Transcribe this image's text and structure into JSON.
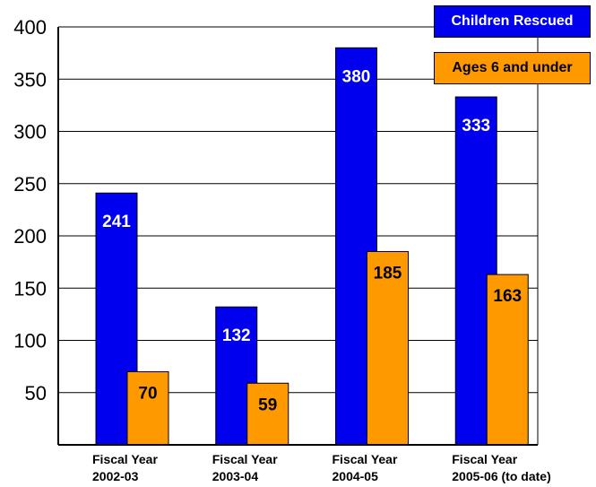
{
  "chart_data": {
    "type": "bar",
    "categories": [
      [
        "Fiscal Year",
        "2002-03"
      ],
      [
        "Fiscal Year",
        "2003-04"
      ],
      [
        "Fiscal Year",
        "2004-05"
      ],
      [
        "Fiscal Year",
        "2005-06 (to date)"
      ]
    ],
    "series": [
      {
        "name": "Children Rescued",
        "values": [
          241,
          132,
          380,
          333
        ],
        "color": "#0000ee",
        "label_color": "#ffffff"
      },
      {
        "name": "Ages 6 and under",
        "values": [
          70,
          59,
          185,
          163
        ],
        "color": "#ff9900",
        "label_color": "#000000"
      }
    ],
    "ylim": [
      0,
      400
    ],
    "yticks": [
      50,
      100,
      150,
      200,
      250,
      300,
      350,
      400
    ],
    "grid": true,
    "legend_position": "top-right"
  }
}
